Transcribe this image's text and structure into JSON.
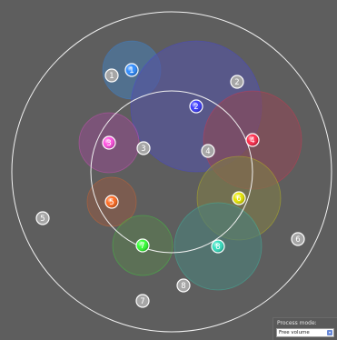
{
  "colors": {
    "background": "#5e5e5e",
    "outline": "#f2f2f2",
    "gray_marker_fill": "#a6a6a6"
  },
  "panel": {
    "label": "Process mode:",
    "selected": "Free volume",
    "arrow_icon": "dropdown-arrow-icon"
  },
  "outlines": [
    {
      "id": "outer-boundary",
      "label": ""
    },
    {
      "id": "inner-boundary",
      "label": ""
    }
  ],
  "spheres": [
    {
      "label": "1",
      "color": "#2f8cff",
      "fill": "#4a7aa8"
    },
    {
      "label": "2",
      "color": "#3b3bff",
      "fill": "#5555a0"
    },
    {
      "label": "3",
      "color": "#ff4fe0",
      "fill": "#8a4f86"
    },
    {
      "label": "4",
      "color": "#ff2a4a",
      "fill": "#8a4a58"
    },
    {
      "label": "5",
      "color": "#ff6a20",
      "fill": "#8a5a48"
    },
    {
      "label": "6",
      "color": "#e6e600",
      "fill": "#7c7a4a"
    },
    {
      "label": "7",
      "color": "#33ff33",
      "fill": "#5a7a52"
    },
    {
      "label": "8",
      "color": "#33e0c0",
      "fill": "#4d7e78"
    }
  ],
  "gray_markers": [
    "1",
    "2",
    "3",
    "4",
    "5",
    "6",
    "7",
    "8"
  ]
}
